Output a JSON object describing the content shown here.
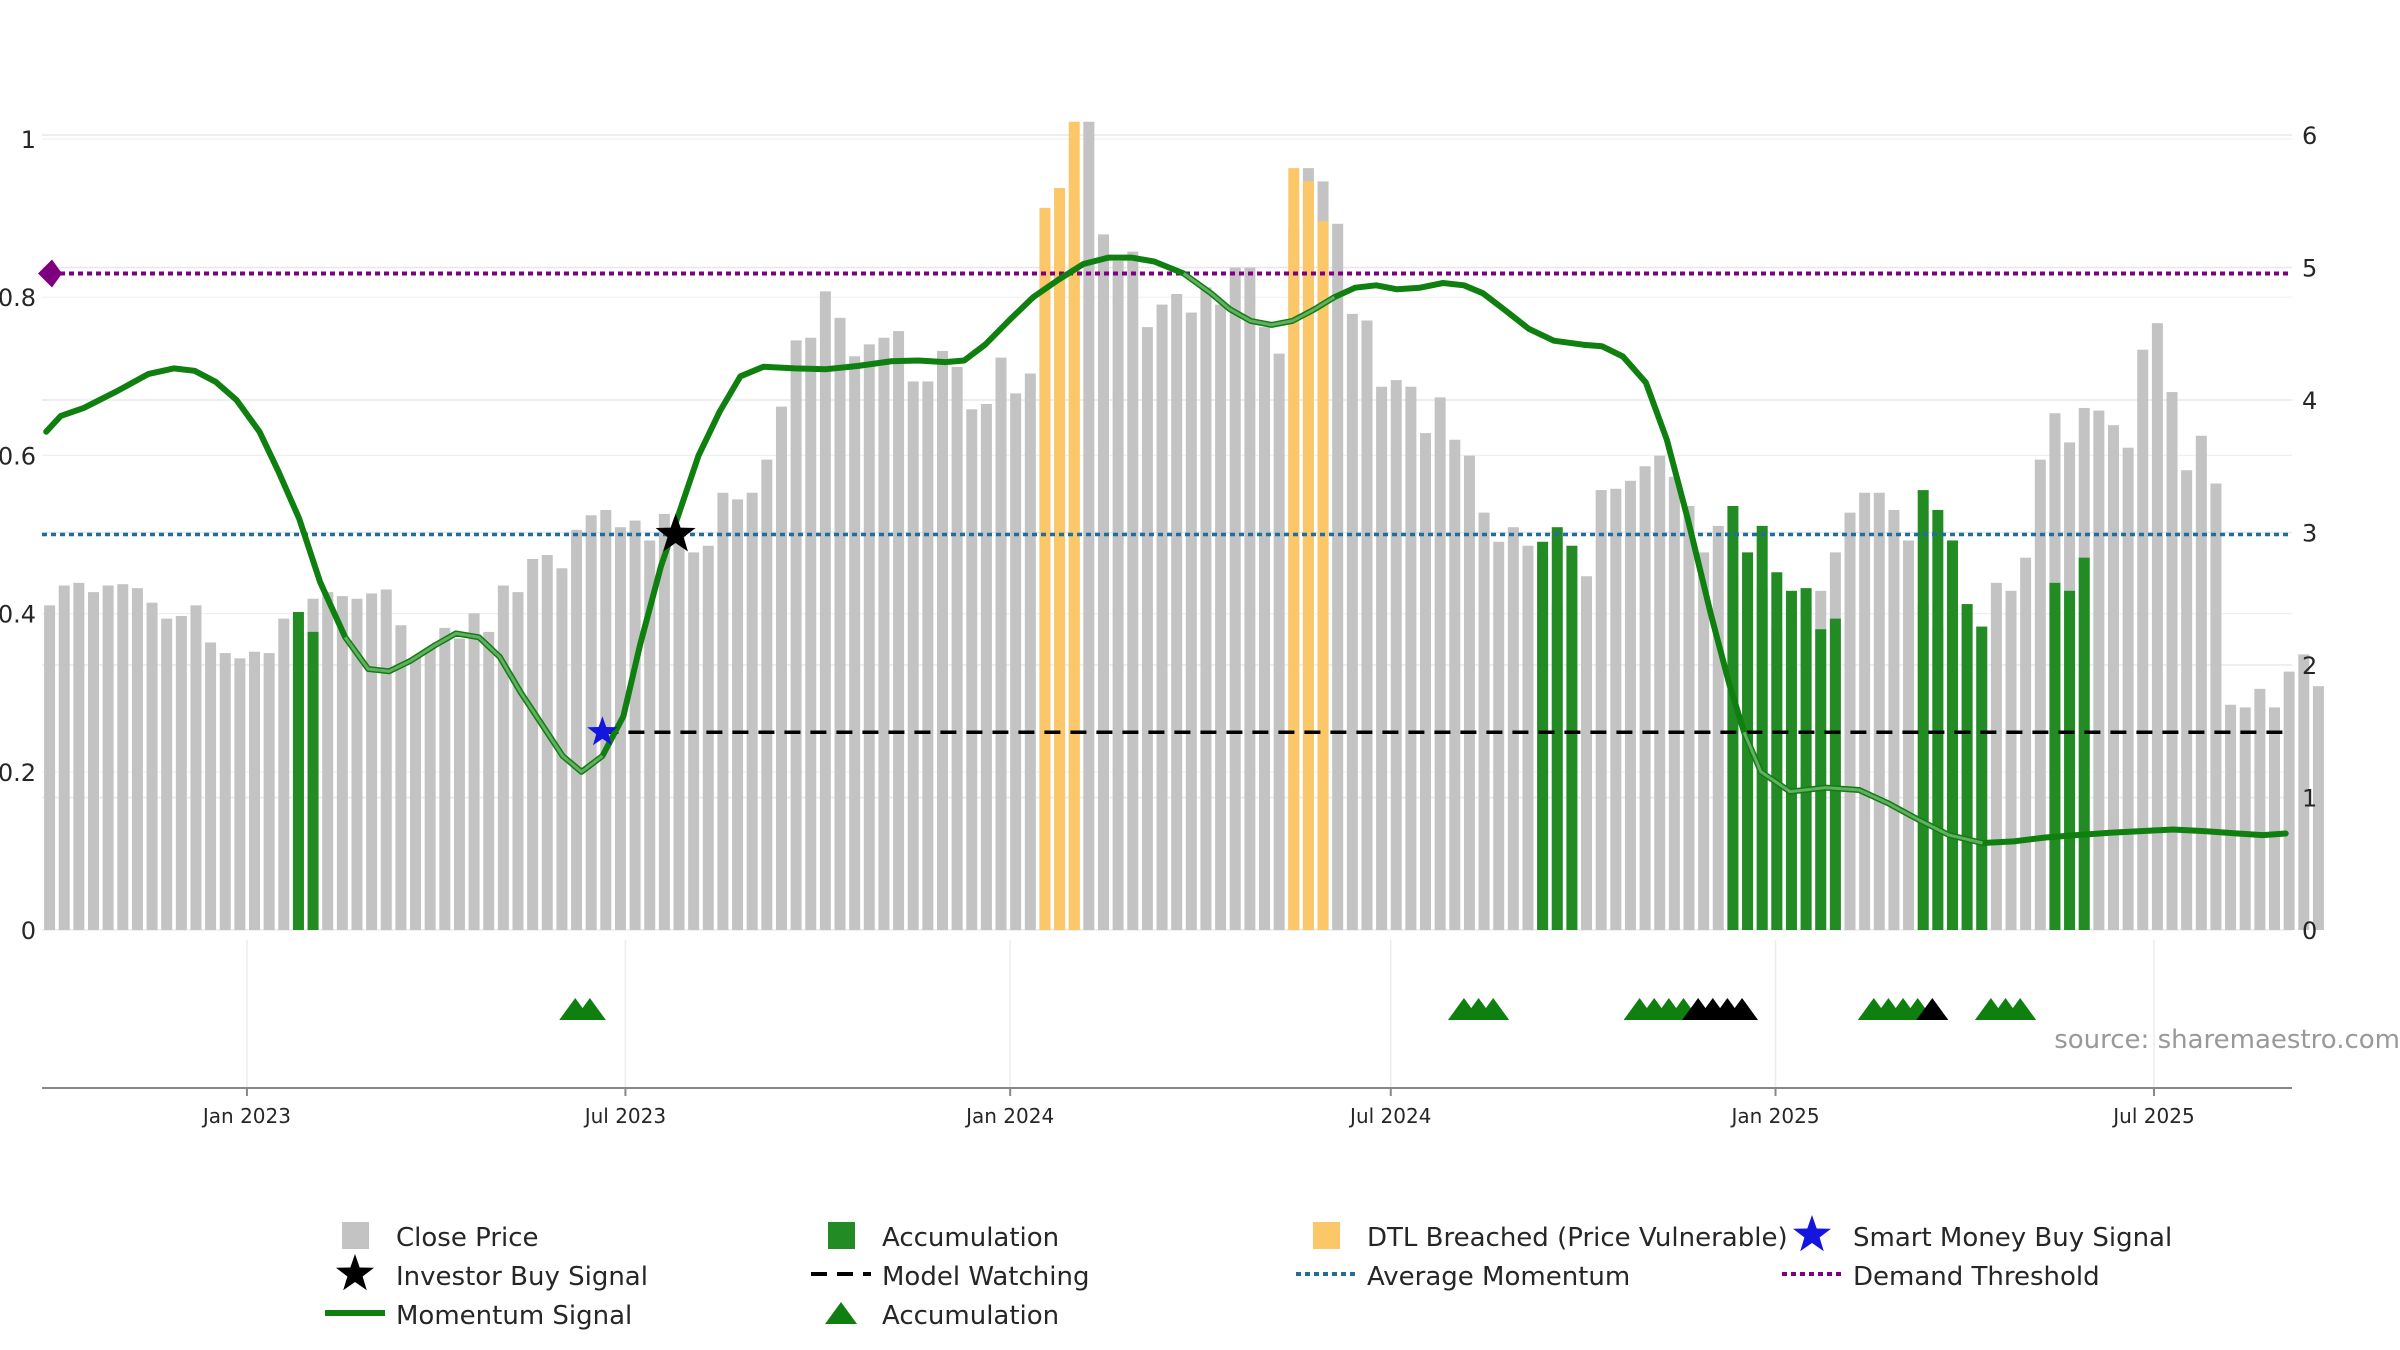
{
  "chart_data": {
    "type": "bar+line",
    "source": "source: sharemaestro.com",
    "left_axis": {
      "ticks": [
        "0",
        "0.2",
        "0.4",
        "0.6",
        "0.8",
        "1"
      ],
      "ylim": [
        0,
        1.1
      ]
    },
    "right_axis": {
      "ticks": [
        "0",
        "1",
        "2",
        "3",
        "4",
        "5",
        "6"
      ],
      "ylim": [
        0,
        6.5
      ]
    },
    "x_range": [
      "2022-09-25",
      "2025-09-05"
    ],
    "x_ticks": [
      {
        "date": "2023-01-01",
        "label": "Jan 2023"
      },
      {
        "date": "2023-07-01",
        "label": "Jul 2023"
      },
      {
        "date": "2024-01-01",
        "label": "Jan 2024"
      },
      {
        "date": "2024-07-01",
        "label": "Jul 2024"
      },
      {
        "date": "2025-01-01",
        "label": "Jan 2025"
      },
      {
        "date": "2025-07-01",
        "label": "Jul 2025"
      }
    ],
    "bar_start": "2022-09-26",
    "bar_interval_days": 7,
    "close_price": [
      2.45,
      2.6,
      2.62,
      2.55,
      2.6,
      2.61,
      2.58,
      2.47,
      2.35,
      2.37,
      2.45,
      2.17,
      2.09,
      2.05,
      2.1,
      2.09,
      2.35,
      2.3,
      2.5,
      2.55,
      2.52,
      2.5,
      2.54,
      2.57,
      2.3,
      2.06,
      2.13,
      2.28,
      2.2,
      2.39,
      2.25,
      2.6,
      2.55,
      2.8,
      2.83,
      2.73,
      3.02,
      3.13,
      3.17,
      3.04,
      3.09,
      2.94,
      3.14,
      2.97,
      2.85,
      2.9,
      3.3,
      3.25,
      3.3,
      3.55,
      3.95,
      4.45,
      4.47,
      4.82,
      4.62,
      4.33,
      4.42,
      4.47,
      4.52,
      4.14,
      4.14,
      4.37,
      4.25,
      3.93,
      3.97,
      4.32,
      4.05,
      4.2,
      5.05,
      5.35,
      5.5,
      6.1,
      5.25,
      5.05,
      5.12,
      4.55,
      4.72,
      4.8,
      4.66,
      4.85,
      4.72,
      5.0,
      5.0,
      4.55,
      4.35,
      5.3,
      5.75,
      5.65,
      5.33,
      4.65,
      4.6,
      4.1,
      4.15,
      4.1,
      3.75,
      4.02,
      3.7,
      3.58,
      3.15,
      2.93,
      3.04,
      2.9,
      2.83,
      2.45,
      2.8,
      2.67,
      3.32,
      3.33,
      3.39,
      3.5,
      3.58,
      3.42,
      3.2,
      2.85,
      3.05,
      2.7,
      2.56,
      2.58,
      2.27,
      2.35,
      2.58,
      2.56,
      2.85,
      3.15,
      3.3,
      3.3,
      3.17,
      2.94,
      2.46,
      2.29,
      2.86,
      2.45,
      2.29,
      2.62,
      2.56,
      2.81,
      3.55,
      3.9,
      3.68,
      3.94,
      3.92,
      3.81,
      3.64,
      4.38,
      4.58,
      4.06,
      3.47,
      3.73,
      3.37,
      1.7,
      1.68,
      1.82,
      1.68,
      1.95,
      2.08,
      1.84
    ],
    "accumulation_bars": [
      [
        17,
        2.4
      ],
      [
        18,
        2.25
      ],
      [
        102,
        2.93
      ],
      [
        103,
        3.04
      ],
      [
        104,
        2.9
      ],
      [
        115,
        3.2
      ],
      [
        116,
        2.85
      ],
      [
        117,
        3.05
      ],
      [
        118,
        2.7
      ],
      [
        119,
        2.56
      ],
      [
        120,
        2.58
      ],
      [
        121,
        2.27
      ],
      [
        122,
        2.35
      ],
      [
        128,
        3.32
      ],
      [
        129,
        3.17
      ],
      [
        130,
        2.94
      ],
      [
        131,
        2.46
      ],
      [
        132,
        2.29
      ],
      [
        137,
        2.62
      ],
      [
        138,
        2.56
      ],
      [
        139,
        2.81
      ]
    ],
    "dtl_breached_bars": [
      [
        68,
        5.45
      ],
      [
        69,
        5.6
      ],
      [
        70,
        6.1
      ],
      [
        85,
        5.75
      ],
      [
        86,
        5.65
      ],
      [
        87,
        5.35
      ]
    ],
    "momentum_signal": [
      [
        "2022-09-27",
        0.63
      ],
      [
        "2022-10-04",
        0.65
      ],
      [
        "2022-10-15",
        0.66
      ],
      [
        "2022-10-30",
        0.68
      ],
      [
        "2022-11-15",
        0.703
      ],
      [
        "2022-11-27",
        0.71
      ],
      [
        "2022-12-07",
        0.707
      ],
      [
        "2022-12-17",
        0.693
      ],
      [
        "2022-12-27",
        0.67
      ],
      [
        "2023-01-07",
        0.63
      ],
      [
        "2023-01-16",
        0.58
      ],
      [
        "2023-01-26",
        0.52
      ],
      [
        "2023-02-05",
        0.44
      ],
      [
        "2023-02-17",
        0.37
      ],
      [
        "2023-02-28",
        0.33
      ],
      [
        "2023-03-10",
        0.327
      ],
      [
        "2023-03-20",
        0.34
      ],
      [
        "2023-04-01",
        0.36
      ],
      [
        "2023-04-11",
        0.375
      ],
      [
        "2023-04-22",
        0.37
      ],
      [
        "2023-05-02",
        0.345
      ],
      [
        "2023-05-12",
        0.3
      ],
      [
        "2023-05-22",
        0.26
      ],
      [
        "2023-06-01",
        0.22
      ],
      [
        "2023-06-10",
        0.2
      ],
      [
        "2023-06-20",
        0.22
      ],
      [
        "2023-06-30",
        0.27
      ],
      [
        "2023-07-08",
        0.36
      ],
      [
        "2023-07-18",
        0.46
      ],
      [
        "2023-07-27",
        0.53
      ],
      [
        "2023-08-05",
        0.6
      ],
      [
        "2023-08-15",
        0.655
      ],
      [
        "2023-08-25",
        0.7
      ],
      [
        "2023-09-05",
        0.712
      ],
      [
        "2023-09-20",
        0.71
      ],
      [
        "2023-10-05",
        0.709
      ],
      [
        "2023-10-20",
        0.713
      ],
      [
        "2023-11-05",
        0.719
      ],
      [
        "2023-11-18",
        0.72
      ],
      [
        "2023-12-01",
        0.718
      ],
      [
        "2023-12-10",
        0.72
      ],
      [
        "2023-12-20",
        0.74
      ],
      [
        "2024-01-01",
        0.772
      ],
      [
        "2024-01-12",
        0.8
      ],
      [
        "2024-01-24",
        0.822
      ],
      [
        "2024-02-05",
        0.842
      ],
      [
        "2024-02-17",
        0.85
      ],
      [
        "2024-02-28",
        0.85
      ],
      [
        "2024-03-10",
        0.845
      ],
      [
        "2024-03-24",
        0.83
      ],
      [
        "2024-04-06",
        0.805
      ],
      [
        "2024-04-15",
        0.785
      ],
      [
        "2024-04-25",
        0.77
      ],
      [
        "2024-05-05",
        0.765
      ],
      [
        "2024-05-15",
        0.77
      ],
      [
        "2024-05-25",
        0.784
      ],
      [
        "2024-06-04",
        0.8
      ],
      [
        "2024-06-14",
        0.812
      ],
      [
        "2024-06-24",
        0.815
      ],
      [
        "2024-07-04",
        0.81
      ],
      [
        "2024-07-15",
        0.812
      ],
      [
        "2024-07-26",
        0.818
      ],
      [
        "2024-08-05",
        0.815
      ],
      [
        "2024-08-14",
        0.805
      ],
      [
        "2024-08-24",
        0.785
      ],
      [
        "2024-09-05",
        0.76
      ],
      [
        "2024-09-17",
        0.745
      ],
      [
        "2024-10-01",
        0.74
      ],
      [
        "2024-10-10",
        0.738
      ],
      [
        "2024-10-20",
        0.725
      ],
      [
        "2024-10-31",
        0.692
      ],
      [
        "2024-11-10",
        0.62
      ],
      [
        "2024-11-20",
        0.52
      ],
      [
        "2024-12-01",
        0.4
      ],
      [
        "2024-12-10",
        0.31
      ],
      [
        "2024-12-17",
        0.25
      ],
      [
        "2024-12-25",
        0.2
      ],
      [
        "2025-01-08",
        0.175
      ],
      [
        "2025-01-25",
        0.18
      ],
      [
        "2025-02-10",
        0.177
      ],
      [
        "2025-02-24",
        0.16
      ],
      [
        "2025-03-10",
        0.14
      ],
      [
        "2025-03-25",
        0.12
      ],
      [
        "2025-04-10",
        0.11
      ],
      [
        "2025-04-25",
        0.112
      ],
      [
        "2025-05-10",
        0.117
      ],
      [
        "2025-05-25",
        0.12
      ],
      [
        "2025-06-10",
        0.123
      ],
      [
        "2025-06-25",
        0.125
      ],
      [
        "2025-07-10",
        0.127
      ],
      [
        "2025-07-25",
        0.125
      ],
      [
        "2025-08-10",
        0.122
      ],
      [
        "2025-08-22",
        0.12
      ],
      [
        "2025-09-02",
        0.122
      ]
    ],
    "average_momentum": 0.5,
    "demand_threshold": 0.83,
    "model_watching": {
      "from": "2023-06-20",
      "to": "2025-09-04",
      "value": 0.25
    },
    "investor_buy_signals": [
      {
        "date": "2023-07-25",
        "value": 0.5
      }
    ],
    "smart_money_buy_signals": [
      {
        "date": "2023-06-20",
        "value": 0.25
      }
    ],
    "signal_markers": [
      {
        "date": "2023-06-07",
        "type": "accumulation"
      },
      {
        "date": "2023-06-14",
        "type": "accumulation"
      },
      {
        "date": "2024-08-05",
        "type": "accumulation"
      },
      {
        "date": "2024-08-12",
        "type": "accumulation"
      },
      {
        "date": "2024-08-19",
        "type": "accumulation"
      },
      {
        "date": "2024-10-28",
        "type": "accumulation"
      },
      {
        "date": "2024-11-04",
        "type": "accumulation"
      },
      {
        "date": "2024-11-11",
        "type": "accumulation"
      },
      {
        "date": "2024-11-18",
        "type": "accumulation"
      },
      {
        "date": "2024-11-25",
        "type": "investor"
      },
      {
        "date": "2024-12-02",
        "type": "investor"
      },
      {
        "date": "2024-12-09",
        "type": "investor"
      },
      {
        "date": "2024-12-16",
        "type": "investor"
      },
      {
        "date": "2025-02-17",
        "type": "accumulation"
      },
      {
        "date": "2025-02-24",
        "type": "accumulation"
      },
      {
        "date": "2025-03-03",
        "type": "accumulation"
      },
      {
        "date": "2025-03-10",
        "type": "accumulation"
      },
      {
        "date": "2025-03-17",
        "type": "investor"
      },
      {
        "date": "2025-04-14",
        "type": "accumulation"
      },
      {
        "date": "2025-04-21",
        "type": "accumulation"
      },
      {
        "date": "2025-04-28",
        "type": "accumulation"
      }
    ],
    "legend": [
      {
        "key": "close",
        "label": "Close Price"
      },
      {
        "key": "accum_bar",
        "label": "Accumulation"
      },
      {
        "key": "dtl",
        "label": "DTL Breached (Price Vulnerable)"
      },
      {
        "key": "smart",
        "label": "Smart Money Buy Signal"
      },
      {
        "key": "investor",
        "label": "Investor Buy Signal"
      },
      {
        "key": "watching",
        "label": "Model Watching"
      },
      {
        "key": "avg",
        "label": "Average Momentum"
      },
      {
        "key": "demand",
        "label": "Demand Threshold"
      },
      {
        "key": "momentum",
        "label": "Momentum Signal"
      },
      {
        "key": "accum_marker",
        "label": "Accumulation"
      }
    ]
  },
  "colors": {
    "close": "#c3c3c3",
    "accumulation": "#238b23",
    "dtl": "#fcc768",
    "momentum": "#0f7f0f",
    "investor": "#000000",
    "smart": "#1515e0",
    "average": "#1f6e9e",
    "demand": "#7f007f",
    "watching": "#000000",
    "grid": "#e8e8e8"
  }
}
